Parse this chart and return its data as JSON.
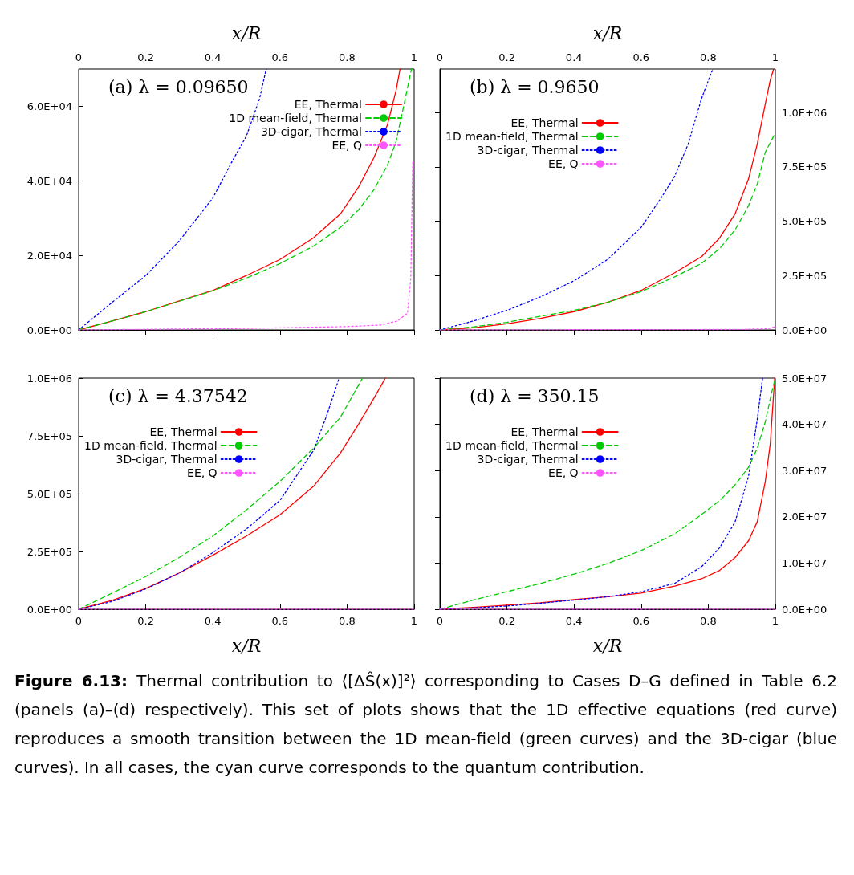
{
  "chart_data": [
    {
      "type": "line",
      "title": "(a) λ = 0.09650",
      "xlabel": "x/R",
      "xlim": [
        0,
        1
      ],
      "xticks": [
        0,
        0.2,
        0.4,
        0.6,
        0.8,
        1
      ],
      "ylim": [
        0,
        70000
      ],
      "yticks": [
        {
          "value": 0,
          "label": "0.0E+00"
        },
        {
          "value": 20000,
          "label": "2.0E+04"
        },
        {
          "value": 40000,
          "label": "4.0E+04"
        },
        {
          "value": 60000,
          "label": "6.0E+04"
        }
      ],
      "legend": "top right",
      "marker": "none",
      "series": [
        {
          "name": "EE, Thermal",
          "color": "#ff0000",
          "line_style": "solid",
          "x": [
            0,
            0.1,
            0.2,
            0.3,
            0.4,
            0.5,
            0.6,
            0.7,
            0.78,
            0.834,
            0.88,
            0.92,
            0.946,
            0.958
          ],
          "values": [
            0,
            2400,
            4900,
            7800,
            10600,
            14600,
            18900,
            24700,
            31100,
            38300,
            46200,
            54900,
            64200,
            70000
          ]
        },
        {
          "name": "1D mean-field, Thermal",
          "color": "#00cc00",
          "line_style": "dashed",
          "x": [
            0,
            0.1,
            0.2,
            0.3,
            0.4,
            0.5,
            0.6,
            0.7,
            0.78,
            0.834,
            0.88,
            0.92,
            0.946,
            0.97,
            0.992
          ],
          "values": [
            0,
            2400,
            4900,
            7700,
            10500,
            13900,
            17800,
            22500,
            27500,
            32200,
            37600,
            44100,
            50500,
            60600,
            70000
          ]
        },
        {
          "name": "3D-cigar, Thermal",
          "color": "#0000ff",
          "line_style": "dotted",
          "x": [
            0,
            0.1,
            0.2,
            0.3,
            0.4,
            0.459,
            0.5,
            0.539,
            0.559
          ],
          "values": [
            0,
            7400,
            14600,
            23900,
            35400,
            45500,
            52000,
            62000,
            70000
          ]
        },
        {
          "name": "EE, Q",
          "color": "#ff55ff",
          "line_style": "dotted",
          "x": [
            0,
            0.5,
            0.8,
            0.9,
            0.95,
            0.98,
            0.99,
            0.996
          ],
          "values": [
            0,
            400,
            900,
            1300,
            2400,
            4500,
            13900,
            45500
          ]
        }
      ]
    },
    {
      "type": "line",
      "title": "(b) λ = 0.9650",
      "xlabel": "x/R",
      "xlim": [
        0,
        1
      ],
      "xticks": [
        0,
        0.2,
        0.4,
        0.6,
        0.8,
        1
      ],
      "y2lim": [
        0,
        1200000
      ],
      "y2ticks": [
        {
          "value": 0,
          "label": "0.0E+00"
        },
        {
          "value": 250000,
          "label": "2.5E+05"
        },
        {
          "value": 500000,
          "label": "5.0E+05"
        },
        {
          "value": 750000,
          "label": "7.5E+05"
        },
        {
          "value": 1000000,
          "label": "1.0E+06"
        }
      ],
      "legend": "top left",
      "marker": "none",
      "series": [
        {
          "name": "EE, Thermal",
          "color": "#ff0000",
          "line_style": "solid",
          "axis": "y2",
          "x": [
            0,
            0.1,
            0.2,
            0.3,
            0.4,
            0.5,
            0.6,
            0.7,
            0.78,
            0.834,
            0.88,
            0.92,
            0.946,
            0.97,
            0.985,
            0.995
          ],
          "values": [
            0,
            10000,
            28000,
            53000,
            84000,
            127000,
            182000,
            263000,
            337000,
            423000,
            534000,
            694000,
            854000,
            1039000,
            1150000,
            1200000
          ]
        },
        {
          "name": "1D mean-field, Thermal",
          "color": "#00cc00",
          "line_style": "dashed",
          "axis": "y2",
          "x": [
            0,
            0.1,
            0.2,
            0.3,
            0.4,
            0.5,
            0.6,
            0.7,
            0.78,
            0.834,
            0.88,
            0.92,
            0.946,
            0.97,
            0.998
          ],
          "values": [
            0,
            14000,
            35000,
            63000,
            90000,
            127000,
            176000,
            244000,
            306000,
            374000,
            460000,
            571000,
            670000,
            817000,
            900000
          ]
        },
        {
          "name": "3D-cigar, Thermal",
          "color": "#0000ff",
          "line_style": "dotted",
          "axis": "y2",
          "x": [
            0,
            0.1,
            0.2,
            0.3,
            0.4,
            0.5,
            0.6,
            0.66,
            0.7,
            0.74,
            0.78,
            0.81,
            0.816
          ],
          "values": [
            0,
            41000,
            90000,
            152000,
            226000,
            324000,
            472000,
            608000,
            707000,
            854000,
            1064000,
            1187000,
            1200000
          ]
        },
        {
          "name": "EE, Q",
          "color": "#ff55ff",
          "line_style": "dotted",
          "axis": "y2",
          "x": [
            0,
            0.9,
            0.98,
            1
          ],
          "values": [
            0,
            2000,
            6000,
            15000
          ]
        }
      ]
    },
    {
      "type": "line",
      "title": "(c) λ = 4.37542",
      "xlabel": "x/R",
      "xlim": [
        0,
        1
      ],
      "xticks": [
        0,
        0.2,
        0.4,
        0.6,
        0.8,
        1
      ],
      "ylim": [
        0,
        1000000
      ],
      "yticks": [
        {
          "value": 0,
          "label": "0.0E+00"
        },
        {
          "value": 250000,
          "label": "2.5E+05"
        },
        {
          "value": 500000,
          "label": "5.0E+05"
        },
        {
          "value": 750000,
          "label": "7.5E+05"
        },
        {
          "value": 1000000,
          "label": "1.0E+06"
        }
      ],
      "legend": "top left",
      "marker": "none",
      "series": [
        {
          "name": "EE, Thermal",
          "color": "#ff0000",
          "line_style": "solid",
          "x": [
            0,
            0.1,
            0.2,
            0.3,
            0.4,
            0.5,
            0.6,
            0.7,
            0.78,
            0.834,
            0.88,
            0.914
          ],
          "values": [
            0,
            39000,
            90000,
            157000,
            234000,
            317000,
            409000,
            532000,
            676000,
            800000,
            913000,
            1000000
          ]
        },
        {
          "name": "1D mean-field, Thermal",
          "color": "#00cc00",
          "line_style": "dashed",
          "x": [
            0,
            0.1,
            0.2,
            0.3,
            0.4,
            0.5,
            0.6,
            0.7,
            0.78,
            0.846
          ],
          "values": [
            0,
            70000,
            142000,
            224000,
            317000,
            430000,
            553000,
            697000,
            830000,
            1000000
          ]
        },
        {
          "name": "3D-cigar, Thermal",
          "color": "#0000ff",
          "line_style": "dotted",
          "x": [
            0,
            0.1,
            0.2,
            0.3,
            0.4,
            0.5,
            0.6,
            0.7,
            0.74,
            0.776
          ],
          "values": [
            0,
            34000,
            88000,
            157000,
            245000,
            347000,
            471000,
            687000,
            841000,
            1000000
          ]
        },
        {
          "name": "EE, Q",
          "color": "#ff55ff",
          "line_style": "dotted",
          "x": [
            0,
            0.5,
            1
          ],
          "values": [
            0,
            0,
            0
          ]
        }
      ]
    },
    {
      "type": "line",
      "title": "(d) λ = 350.15",
      "xlabel": "x/R",
      "xlim": [
        0,
        1
      ],
      "xticks": [
        0,
        0.2,
        0.4,
        0.6,
        0.8,
        1
      ],
      "y2lim": [
        0,
        50000000
      ],
      "y2ticks": [
        {
          "value": 0,
          "label": "0.0E+00"
        },
        {
          "value": 10000000,
          "label": "1.0E+07"
        },
        {
          "value": 20000000,
          "label": "2.0E+07"
        },
        {
          "value": 30000000,
          "label": "3.0E+07"
        },
        {
          "value": 40000000,
          "label": "4.0E+07"
        },
        {
          "value": 50000000,
          "label": "5.0E+07"
        }
      ],
      "legend": "top left",
      "marker": "none",
      "series": [
        {
          "name": "EE, Thermal",
          "color": "#ff0000",
          "line_style": "solid",
          "axis": "y2",
          "x": [
            0,
            0.1,
            0.2,
            0.3,
            0.4,
            0.5,
            0.6,
            0.7,
            0.78,
            0.834,
            0.88,
            0.92,
            0.946,
            0.97,
            0.985,
            0.998
          ],
          "values": [
            0,
            400000,
            900000,
            1400000,
            2100000,
            2700000,
            3500000,
            5000000,
            6600000,
            8400000,
            11200000,
            14800000,
            18900000,
            27600000,
            35900000,
            50000000
          ]
        },
        {
          "name": "1D mean-field, Thermal",
          "color": "#00cc00",
          "line_style": "dashed",
          "axis": "y2",
          "x": [
            0,
            0.1,
            0.2,
            0.3,
            0.4,
            0.5,
            0.6,
            0.7,
            0.78,
            0.834,
            0.88,
            0.92,
            0.946,
            0.97,
            0.99,
            1
          ],
          "values": [
            0,
            2000000,
            3800000,
            5600000,
            7600000,
            9900000,
            12700000,
            16300000,
            20500000,
            23500000,
            26900000,
            30700000,
            34800000,
            40500000,
            47200000,
            50000000
          ]
        },
        {
          "name": "3D-cigar, Thermal",
          "color": "#0000ff",
          "line_style": "dotted",
          "axis": "y2",
          "x": [
            0,
            0.1,
            0.2,
            0.3,
            0.4,
            0.5,
            0.6,
            0.7,
            0.78,
            0.834,
            0.88,
            0.92,
            0.946,
            0.962
          ],
          "values": [
            0,
            300000,
            700000,
            1300000,
            2000000,
            2700000,
            3800000,
            5600000,
            9200000,
            13300000,
            18900000,
            28700000,
            41000000,
            50000000
          ]
        },
        {
          "name": "EE, Q",
          "color": "#ff55ff",
          "line_style": "dotted",
          "axis": "y2",
          "x": [
            0,
            0.5,
            1
          ],
          "values": [
            0,
            0,
            0
          ]
        }
      ],
      "annotations": [
        "Figure 6.13:",
        "Thermal contribution to ⟨[ΔŜ(x)]²⟩ corresponding to Cases D–G defined in Table 6.2 (panels (a)–(d) respectively). This set of plots shows that the 1D effective equations (red curve) reproduces a smooth transition between the 1D mean-field (green curves) and the 3D-cigar (blue curves). In all cases, the cyan curve corresponds to the quantum contribution."
      ]
    }
  ]
}
